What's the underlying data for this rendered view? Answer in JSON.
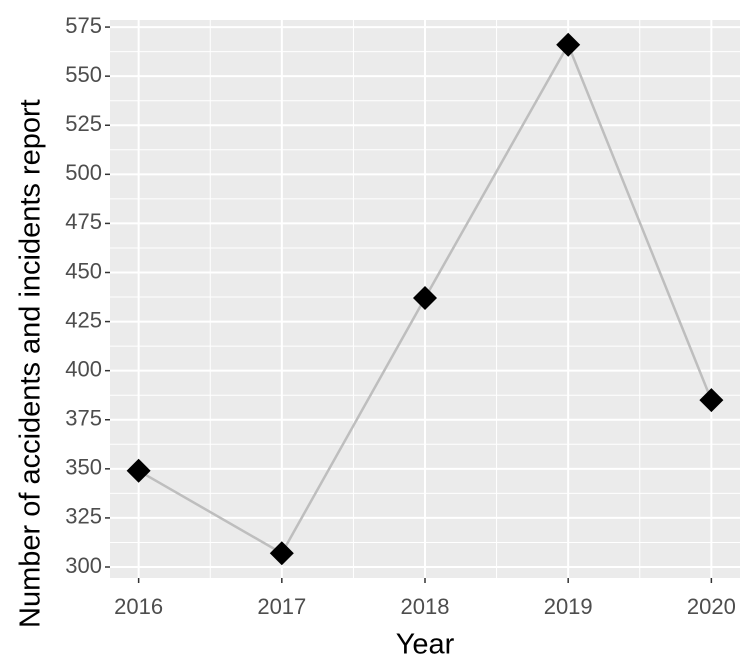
{
  "chart_data": {
    "type": "line",
    "x_label": "Year",
    "y_label": "Number of accidents and incidents report",
    "x": [
      2016,
      2017,
      2018,
      2019,
      2020
    ],
    "series": [
      {
        "color": "#bebebe",
        "marker_color": "#000000",
        "values": [
          349,
          307,
          437,
          566,
          385
        ]
      }
    ],
    "xlim": [
      2015.8,
      2020.2
    ],
    "xticks": [
      2016,
      2017,
      2018,
      2019,
      2020
    ],
    "ylim": [
      294.4,
      578.6
    ],
    "yticks": [
      300,
      325,
      350,
      375,
      400,
      425,
      450,
      475,
      500,
      525,
      550,
      575
    ],
    "grid": true
  }
}
